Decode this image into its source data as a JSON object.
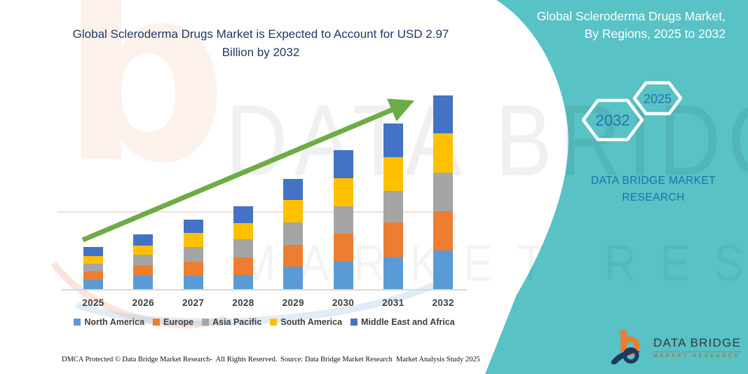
{
  "left_panel": {
    "title": "Global Scleroderma Drugs Market is Expected to Account for USD 2.97 Billion by 2032"
  },
  "chart_data": {
    "type": "bar",
    "stacked": true,
    "title": "Global Scleroderma Drugs Market is Expected to Account for USD 2.97 Billion by 2032",
    "unit": "USD Billion",
    "categories": [
      "2025",
      "2026",
      "2027",
      "2028",
      "2029",
      "2030",
      "2031",
      "2032"
    ],
    "series": [
      {
        "name": "North America",
        "color": "#5B9BD5",
        "values": [
          0.14,
          0.21,
          0.2,
          0.22,
          0.34,
          0.43,
          0.49,
          0.59
        ]
      },
      {
        "name": "Europe",
        "color": "#ED7D31",
        "values": [
          0.13,
          0.16,
          0.22,
          0.26,
          0.34,
          0.42,
          0.53,
          0.6
        ]
      },
      {
        "name": "Asia Pacific",
        "color": "#A5A5A5",
        "values": [
          0.12,
          0.16,
          0.23,
          0.28,
          0.34,
          0.42,
          0.49,
          0.6
        ]
      },
      {
        "name": "South America",
        "color": "#FFC000",
        "values": [
          0.12,
          0.14,
          0.21,
          0.25,
          0.35,
          0.43,
          0.51,
          0.6
        ]
      },
      {
        "name": "Middle East and Africa",
        "color": "#4472C4",
        "values": [
          0.14,
          0.17,
          0.2,
          0.26,
          0.32,
          0.43,
          0.52,
          0.58
        ]
      }
    ],
    "totals": [
      0.65,
      0.84,
      1.06,
      1.27,
      1.69,
      2.13,
      2.54,
      2.97
    ],
    "ylim": [
      0,
      3.2
    ],
    "gridlines": false,
    "legend_position": "bottom",
    "trend_arrow": true,
    "trend_arrow_color": "#6CAC44"
  },
  "right_panel": {
    "background_color": "#58C2C5",
    "title_line1": "Global Scleroderma Drugs Market,",
    "title_line2": "By Regions, 2025 to 2032",
    "hexagon_large_year": "2032",
    "hexagon_small_year": "2025",
    "brand_line1": "DATA BRIDGE MARKET",
    "brand_line2": "RESEARCH"
  },
  "footer": {
    "dmca": "DMCA Protected © Data Bridge Market Research-  All Rights Reserved.",
    "source": "Source: Data Bridge Market Research  Market Analysis Study 2025"
  },
  "logo": {
    "name": "DATA BRIDGE",
    "subtitle": "MARKET RESEARCH"
  },
  "watermark": {
    "letter": "b",
    "text_line1": "DATA BRIDGE",
    "text_line2": "MARKET RESEARCH"
  }
}
